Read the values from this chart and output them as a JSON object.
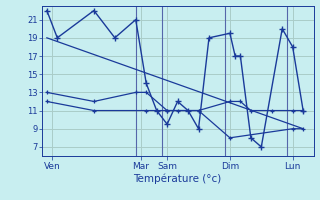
{
  "background_color": "#c8eef0",
  "grid_color": "#aaccc8",
  "line_color": "#1a3a9a",
  "xlabel": "Température (°c)",
  "yticks": [
    7,
    9,
    11,
    13,
    15,
    17,
    19,
    21
  ],
  "ylim": [
    6.0,
    22.5
  ],
  "xlim": [
    0,
    26
  ],
  "xtick_labels": [
    "Ven",
    "Mar",
    "Sam",
    "Dim",
    "Lun"
  ],
  "xtick_positions": [
    1,
    9.5,
    12,
    18,
    24
  ],
  "series1_x": [
    0.5,
    1.5,
    5,
    7,
    9,
    10,
    11,
    12,
    13,
    14,
    15,
    16,
    18,
    18.5,
    19,
    20,
    21,
    23,
    24,
    25
  ],
  "series1_y": [
    22,
    19,
    22,
    19,
    21,
    14,
    11,
    9.5,
    12,
    11,
    9,
    19,
    19.5,
    17,
    17,
    8,
    7,
    20,
    18,
    11
  ],
  "series2_x": [
    0.5,
    5,
    9,
    10,
    12,
    13,
    15,
    18,
    19,
    20,
    22,
    24,
    25
  ],
  "series2_y": [
    13,
    12,
    13,
    13,
    11,
    11,
    11,
    12,
    12,
    11,
    11,
    11,
    11
  ],
  "series3_x": [
    0.5,
    5,
    10,
    12,
    15,
    18,
    24,
    25
  ],
  "series3_y": [
    12,
    11,
    11,
    11,
    11,
    8,
    9,
    9
  ],
  "series4_x": [
    0.5,
    25
  ],
  "series4_y": [
    19,
    9
  ]
}
